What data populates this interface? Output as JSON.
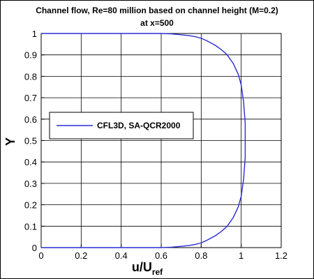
{
  "chart_data": {
    "type": "line",
    "title": "Channel flow, Re=80 million based on channel height (M=0.2)",
    "subtitle": "at x=500",
    "xlabel_main": "u/U",
    "xlabel_sub": "ref",
    "ylabel": "Y",
    "xlim": [
      0,
      1.2
    ],
    "ylim": [
      0,
      1
    ],
    "x_ticks": [
      0,
      0.2,
      0.4,
      0.6,
      0.8,
      1,
      1.2
    ],
    "x_tick_labels": [
      "0",
      "0.2",
      "0.4",
      "0.6",
      "0.8",
      "1",
      "1.2"
    ],
    "y_ticks": [
      0,
      0.1,
      0.2,
      0.3,
      0.4,
      0.5,
      0.6,
      0.7,
      0.8,
      0.9,
      1
    ],
    "y_tick_labels": [
      "0",
      "0.1",
      "0.2",
      "0.3",
      "0.4",
      "0.5",
      "0.6",
      "0.7",
      "0.8",
      "0.9",
      "1"
    ],
    "grid": true,
    "legend_position": "middle-left",
    "series": [
      {
        "name": "CFL3D, SA-QCR2000",
        "color": "#2b2bd6",
        "x": [
          0.0,
          0.6,
          0.65,
          0.7,
          0.74,
          0.77,
          0.8,
          0.83,
          0.87,
          0.9,
          0.93,
          0.96,
          0.985,
          1.0,
          1.012,
          1.02,
          1.02,
          1.012,
          1.0,
          0.985,
          0.96,
          0.93,
          0.9,
          0.87,
          0.83,
          0.8,
          0.77,
          0.74,
          0.7,
          0.65,
          0.6,
          0.0
        ],
        "y": [
          0.0,
          0.0,
          0.002,
          0.006,
          0.01,
          0.015,
          0.022,
          0.035,
          0.055,
          0.075,
          0.1,
          0.14,
          0.19,
          0.24,
          0.32,
          0.42,
          0.58,
          0.68,
          0.76,
          0.81,
          0.86,
          0.9,
          0.925,
          0.945,
          0.965,
          0.978,
          0.985,
          0.99,
          0.994,
          0.998,
          1.0,
          1.0
        ]
      }
    ]
  }
}
